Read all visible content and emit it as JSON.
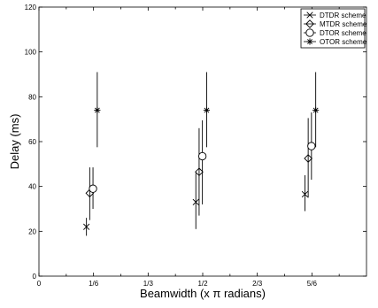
{
  "chart_data": {
    "type": "scatter",
    "title": "",
    "xlabel": "Beamwidth (x π radians)",
    "ylabel": "Delay (ms)",
    "xlim": [
      0,
      1
    ],
    "ylim": [
      0,
      120
    ],
    "x_ticks": [
      {
        "value": 0,
        "label": "0"
      },
      {
        "value": 0.16667,
        "label": "1/6"
      },
      {
        "value": 0.33333,
        "label": "1/3"
      },
      {
        "value": 0.5,
        "label": "1/2"
      },
      {
        "value": 0.66667,
        "label": "2/3"
      },
      {
        "value": 0.83333,
        "label": "5/6"
      }
    ],
    "x_minor_ticks": [
      0.08333,
      0.25,
      0.41667,
      0.58333,
      0.75,
      0.91667
    ],
    "y_ticks": [
      0,
      20,
      40,
      60,
      80,
      100,
      120
    ],
    "legend_position": "top-right",
    "grid": false,
    "series": [
      {
        "name": "DTDR scheme",
        "marker": "x",
        "points": [
          {
            "x": 0.145,
            "y": 22,
            "err_low": 18,
            "err_high": 26
          },
          {
            "x": 0.479,
            "y": 33,
            "err_low": 21,
            "err_high": 46
          },
          {
            "x": 0.812,
            "y": 36.5,
            "err_low": 29,
            "err_high": 45
          }
        ]
      },
      {
        "name": "MTDR scheme",
        "marker": "diamond",
        "points": [
          {
            "x": 0.155,
            "y": 37,
            "err_low": 25,
            "err_high": 48.5
          },
          {
            "x": 0.489,
            "y": 46.5,
            "err_low": 27,
            "err_high": 66
          },
          {
            "x": 0.822,
            "y": 52.5,
            "err_low": 35,
            "err_high": 70.5
          }
        ]
      },
      {
        "name": "DTOR scheme",
        "marker": "circle",
        "points": [
          {
            "x": 0.165,
            "y": 39,
            "err_low": 30,
            "err_high": 48.5
          },
          {
            "x": 0.499,
            "y": 53.5,
            "err_low": 32,
            "err_high": 69.5
          },
          {
            "x": 0.832,
            "y": 58,
            "err_low": 43,
            "err_high": 73
          }
        ]
      },
      {
        "name": "OTOR scheme",
        "marker": "star",
        "points": [
          {
            "x": 0.178,
            "y": 74,
            "err_low": 57.5,
            "err_high": 91
          },
          {
            "x": 0.512,
            "y": 74,
            "err_low": 57.5,
            "err_high": 91
          },
          {
            "x": 0.845,
            "y": 74,
            "err_low": 57.5,
            "err_high": 91
          }
        ]
      }
    ]
  }
}
